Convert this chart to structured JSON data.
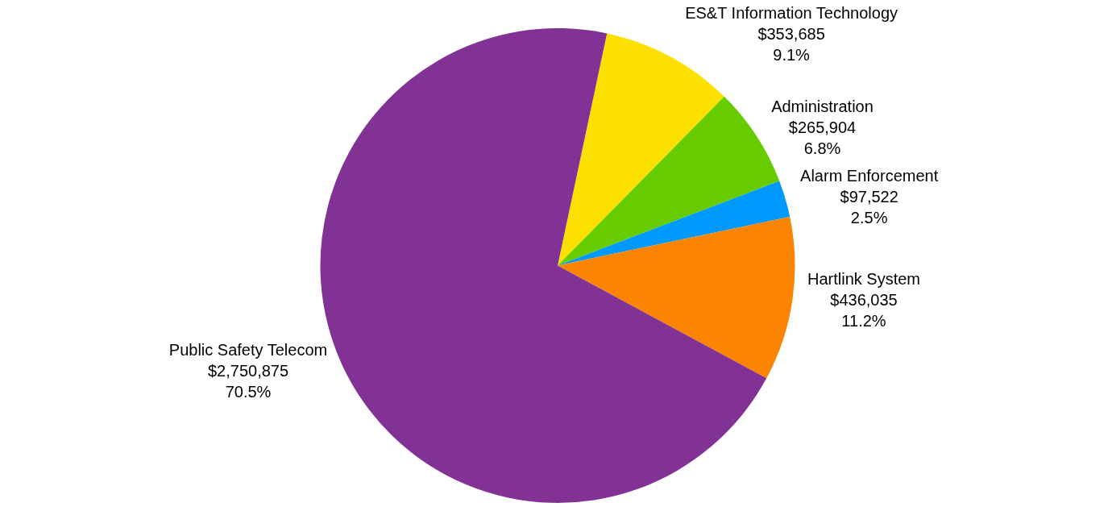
{
  "chart_data": {
    "type": "pie",
    "categories": [
      "ES&T Information Technology",
      "Administration",
      "Alarm Enforcement",
      "Hartlink System",
      "Public Safety Telecom"
    ],
    "values": [
      353685,
      265904,
      97522,
      436035,
      2750875
    ],
    "value_labels": [
      "$353,685\n9.1%",
      "$265,904\n6.8%",
      "$97,522\n2.5%",
      "$436,035\n11.2%",
      "$2,750,875\n70.5%"
    ],
    "colors": [
      "#fbe000",
      "#66cc00",
      "#0099ff",
      "#fb8500",
      "#823294"
    ],
    "legend": false
  }
}
